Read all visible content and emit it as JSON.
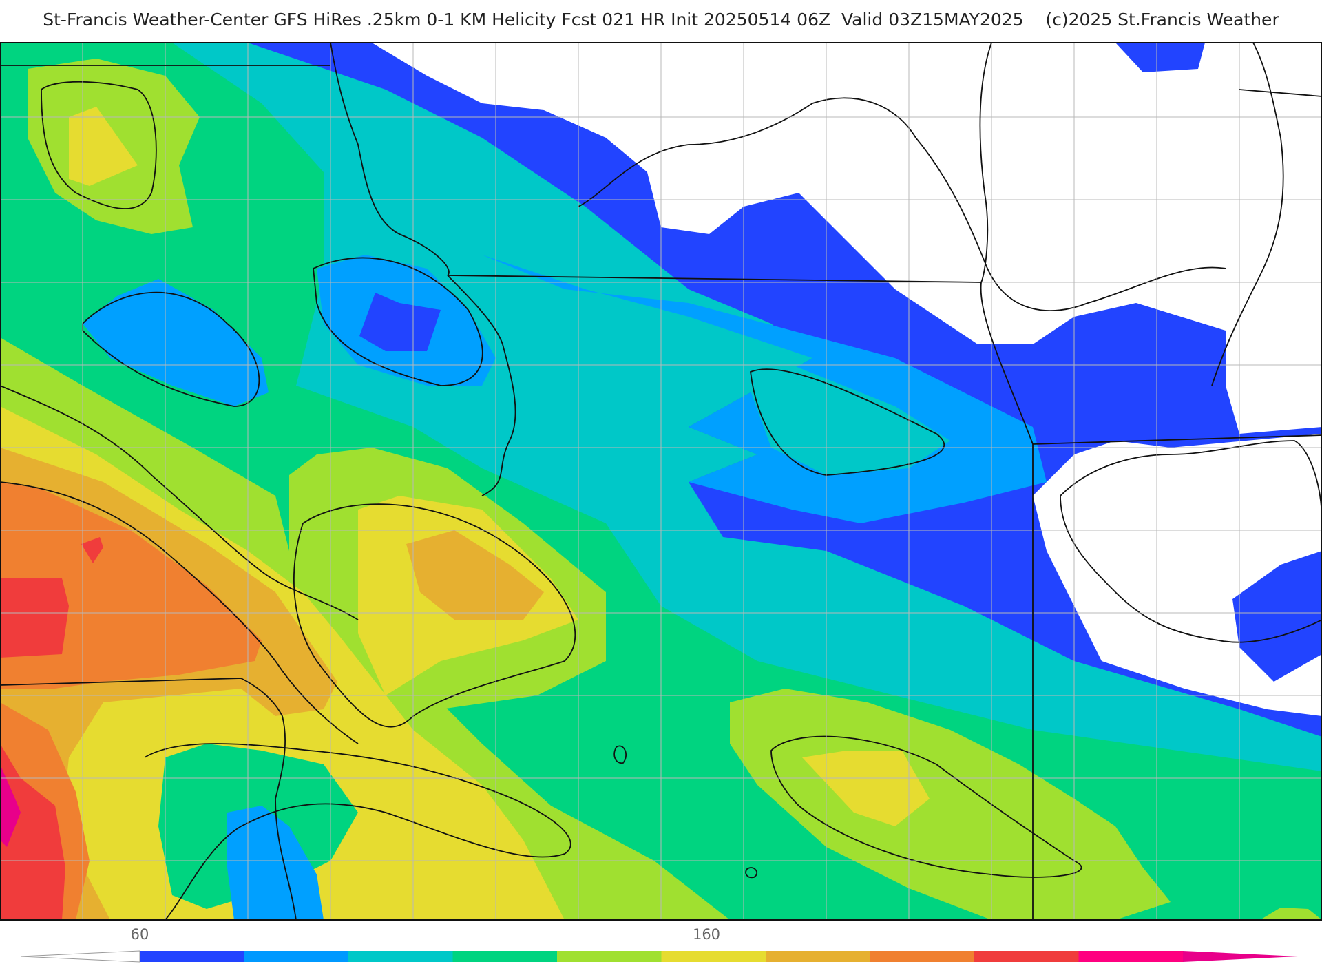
{
  "header": {
    "title": "St-Francis Weather-Center GFS HiRes .25km 0-1 KM Helicity Fcst 021 HR Init 20250514 06Z  Valid 03Z15MAY2025    (c)2025 St.Francis Weather"
  },
  "colorbar": {
    "tick_labels": [
      "60",
      "160"
    ],
    "colors": [
      "#2244ff",
      "#0099ff",
      "#00c8c8",
      "#00d480",
      "#a0e030",
      "#e6dc30",
      "#e6b030",
      "#f08030",
      "#f03c3c",
      "#ff0080"
    ]
  },
  "palette": {
    "white": "#ffffff",
    "blue": "#2244ff",
    "sky": "#00a0ff",
    "cyan": "#00c8c8",
    "green": "#00d480",
    "lime": "#a0e030",
    "yellow": "#e6dc30",
    "gold": "#e6b030",
    "orange": "#f08030",
    "red": "#f03c3c",
    "magenta": "#e8008a"
  }
}
